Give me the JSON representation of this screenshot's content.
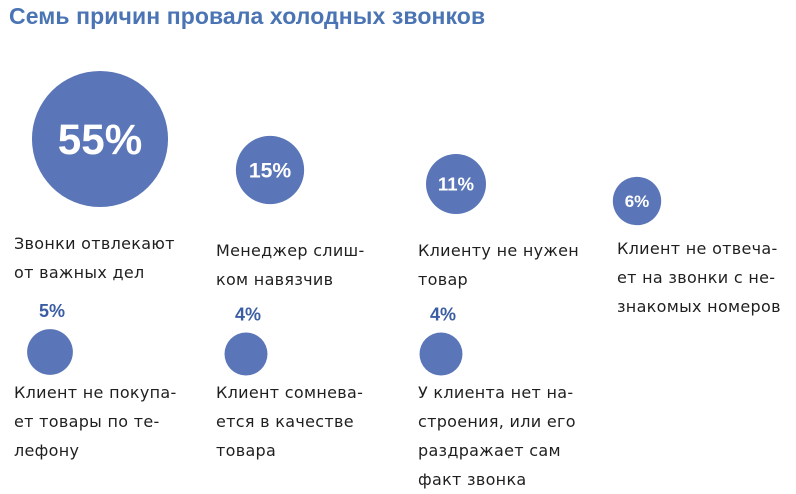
{
  "title": "Семь причин провала холодных звонков",
  "colors": {
    "bubble": "#5a76b8",
    "title": "#4a74b3",
    "text": "#1f1f1f",
    "small_value": "#3a5da4"
  },
  "chart_data": {
    "type": "bubble",
    "title": "Семь причин провала холодных звонков",
    "unit": "%",
    "items": [
      {
        "value": 55,
        "display": "55%",
        "label_lines": [
          "Звонки отвлекают",
          "от важных дел"
        ]
      },
      {
        "value": 15,
        "display": "15%",
        "label_lines": [
          "Менеджер слиш-",
          "ком навязчив"
        ]
      },
      {
        "value": 11,
        "display": "11%",
        "label_lines": [
          "Клиенту не нужен",
          "товар"
        ]
      },
      {
        "value": 6,
        "display": "6%",
        "label_lines": [
          "Клиент не отвеча-",
          "ет на звонки с не-",
          "знакомых номеров"
        ]
      },
      {
        "value": 5,
        "display": "5%",
        "label_lines": [
          "Клиент не покупа-",
          "ет товары по те-",
          "лефону"
        ]
      },
      {
        "value": 4,
        "display": "4%",
        "label_lines": [
          "Клиент сомнева-",
          "ется в качестве",
          "товара"
        ]
      },
      {
        "value": 4,
        "display": "4%",
        "label_lines": [
          "У клиента нет на-",
          "строения, или его",
          "раздражает сам",
          "факт звонка"
        ]
      }
    ]
  }
}
